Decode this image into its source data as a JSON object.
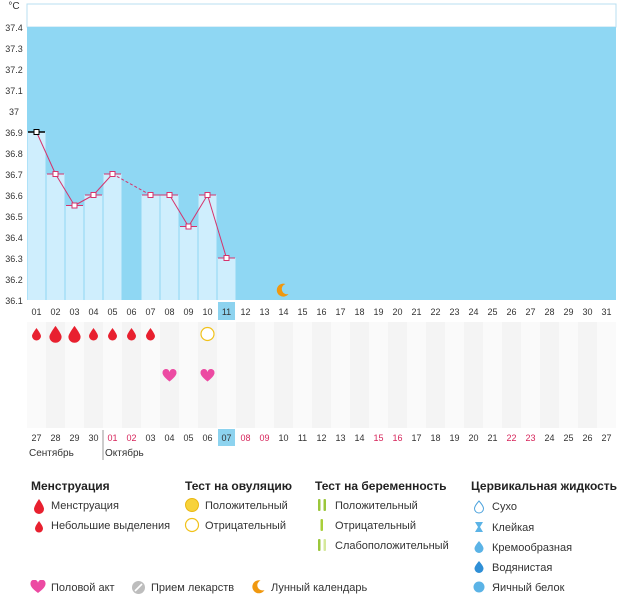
{
  "chart_data": {
    "type": "line",
    "title": "",
    "y_unit_label": "°C",
    "ylim": [
      36.1,
      37.4
    ],
    "y_ticks": [
      "37.4",
      "37.3",
      "37.2",
      "37.1",
      "37",
      "36.9",
      "36.8",
      "36.7",
      "36.6",
      "36.5",
      "36.4",
      "36.3",
      "36.2",
      "36.1"
    ],
    "x_cycle_days": [
      "01",
      "02",
      "03",
      "04",
      "05",
      "06",
      "07",
      "08",
      "09",
      "10",
      "11",
      "12",
      "13",
      "14",
      "15",
      "16",
      "17",
      "18",
      "19",
      "20",
      "21",
      "22",
      "23",
      "24",
      "25",
      "26",
      "27",
      "28",
      "29",
      "30",
      "31"
    ],
    "current_cycle_day": "11",
    "series": [
      {
        "values": [
          36.9,
          36.7,
          36.55,
          36.6,
          36.7,
          null,
          36.6,
          36.6,
          36.45,
          36.6,
          36.3
        ]
      }
    ],
    "dashed_segment": [
      "05",
      "07"
    ],
    "moon_marker_day": "14",
    "calendar_dates": [
      "27",
      "28",
      "29",
      "30",
      "01",
      "02",
      "03",
      "04",
      "05",
      "06",
      "07",
      "08",
      "09",
      "10",
      "11",
      "12",
      "13",
      "14",
      "15",
      "16",
      "17",
      "18",
      "19",
      "20",
      "21",
      "22",
      "23",
      "24",
      "25",
      "26",
      "27"
    ],
    "current_date": "07",
    "weekend_dates_index": [
      4,
      5,
      11,
      12,
      18,
      19,
      25,
      26
    ],
    "month_labels": [
      {
        "label": "Сентябрь",
        "start_index": 0
      },
      {
        "label": "Октябрь",
        "start_index": 4
      }
    ],
    "menstruation": [
      {
        "day": "01",
        "kind": "light"
      },
      {
        "day": "02",
        "kind": "heavy"
      },
      {
        "day": "03",
        "kind": "heavy"
      },
      {
        "day": "04",
        "kind": "light"
      },
      {
        "day": "05",
        "kind": "light"
      },
      {
        "day": "06",
        "kind": "light"
      },
      {
        "day": "07",
        "kind": "light"
      }
    ],
    "ovulation_test": [
      {
        "day": "10",
        "result": "negative"
      }
    ],
    "intercourse": [
      "08",
      "10"
    ]
  },
  "legend": {
    "menstruation": {
      "title": "Менструация",
      "items": [
        "Менструация",
        "Небольшие выделения"
      ]
    },
    "ovulation_test": {
      "title": "Тест на овуляцию",
      "items": [
        "Положительный",
        "Отрицательный"
      ]
    },
    "pregnancy_test": {
      "title": "Тест на беременность",
      "items": [
        "Положительный",
        "Отрицательный",
        "Слабоположительный"
      ]
    },
    "cervical": {
      "title": "Цервикальная жидкость",
      "items": [
        "Сухо",
        "Клейкая",
        "Кремообразная",
        "Водянистая",
        "Яичный белок"
      ]
    },
    "bottom": {
      "intercourse": "Половой акт",
      "medicine": "Прием лекарств",
      "lunar": "Лунный календарь"
    }
  },
  "colors": {
    "plot_bg": "#8fd7f3",
    "bar_fill": "#cfeefd",
    "line": "#d6336c",
    "blood": "#e8202f",
    "heart": "#ec4aa2",
    "ovul_pos": "#f7d23b",
    "ovul_neg": "#f1c21b",
    "preg_pos": "#9bc73b",
    "preg_neg": "#a9cf3a",
    "preg_weak": "#d5e89b",
    "moon": "#f0980f",
    "weekend": "#d6245a",
    "current_bg": "#8dd3ef"
  }
}
